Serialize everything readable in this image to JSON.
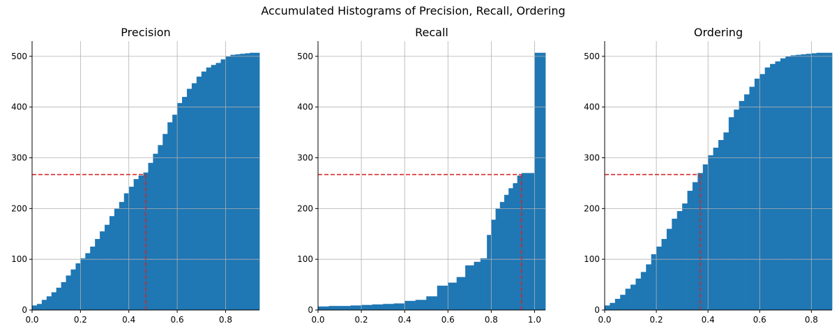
{
  "figure": {
    "suptitle": "Accumulated Histograms of Precision, Recall, Ordering"
  },
  "chart_data": [
    {
      "type": "bar",
      "title": "Precision",
      "xlabel": "",
      "ylabel": "",
      "xlim": [
        0,
        0.94
      ],
      "ylim": [
        0,
        530
      ],
      "xticks": [
        0.0,
        0.2,
        0.4,
        0.6,
        0.8
      ],
      "xtick_labels": [
        "0.0",
        "0.2",
        "0.4",
        "0.6",
        "0.8"
      ],
      "yticks": [
        0,
        100,
        200,
        300,
        400,
        500
      ],
      "ytick_labels": [
        "0",
        "100",
        "200",
        "300",
        "400",
        "500"
      ],
      "grid": true,
      "bar_color": "#1f77b4",
      "ref_color": "#d62728",
      "reference": {
        "x": 0.47,
        "y": 267
      },
      "x": [
        0.0,
        0.02,
        0.04,
        0.06,
        0.08,
        0.1,
        0.12,
        0.14,
        0.16,
        0.18,
        0.2,
        0.22,
        0.24,
        0.26,
        0.28,
        0.3,
        0.32,
        0.34,
        0.36,
        0.38,
        0.4,
        0.42,
        0.44,
        0.46,
        0.48,
        0.5,
        0.52,
        0.54,
        0.56,
        0.58,
        0.6,
        0.62,
        0.64,
        0.66,
        0.68,
        0.7,
        0.72,
        0.74,
        0.76,
        0.78,
        0.8,
        0.82,
        0.84,
        0.86,
        0.88,
        0.9,
        0.92
      ],
      "values": [
        9,
        12,
        20,
        27,
        35,
        44,
        55,
        68,
        80,
        92,
        102,
        112,
        125,
        140,
        155,
        168,
        185,
        200,
        213,
        230,
        243,
        258,
        265,
        271,
        290,
        308,
        325,
        347,
        370,
        385,
        408,
        420,
        436,
        447,
        460,
        470,
        478,
        483,
        487,
        494,
        500,
        503,
        504,
        505,
        506,
        507,
        507
      ]
    },
    {
      "type": "bar",
      "title": "Recall",
      "xlabel": "",
      "ylabel": "",
      "xlim": [
        0,
        1.05
      ],
      "ylim": [
        0,
        530
      ],
      "xticks": [
        0.0,
        0.2,
        0.4,
        0.6,
        0.8,
        1.0
      ],
      "xtick_labels": [
        "0.0",
        "0.2",
        "0.4",
        "0.6",
        "0.8",
        "1.0"
      ],
      "yticks": [
        0,
        100,
        200,
        300,
        400,
        500
      ],
      "ytick_labels": [
        "0",
        "100",
        "200",
        "300",
        "400",
        "500"
      ],
      "grid": true,
      "bar_color": "#1f77b4",
      "ref_color": "#d62728",
      "reference": {
        "x": 0.94,
        "y": 267
      },
      "x": [
        0.0,
        0.05,
        0.1,
        0.15,
        0.2,
        0.25,
        0.3,
        0.35,
        0.4,
        0.45,
        0.5,
        0.55,
        0.6,
        0.64,
        0.68,
        0.72,
        0.75,
        0.78,
        0.8,
        0.82,
        0.84,
        0.86,
        0.88,
        0.9,
        0.92,
        0.94,
        0.96,
        0.98,
        1.0
      ],
      "values": [
        7,
        8,
        8,
        9,
        10,
        11,
        12,
        13,
        18,
        20,
        27,
        48,
        54,
        65,
        88,
        95,
        102,
        148,
        178,
        200,
        213,
        227,
        240,
        250,
        265,
        270,
        270,
        270,
        507
      ]
    },
    {
      "type": "bar",
      "title": "Ordering",
      "xlabel": "",
      "ylabel": "",
      "xlim": [
        0,
        0.88
      ],
      "ylim": [
        0,
        530
      ],
      "xticks": [
        0.0,
        0.2,
        0.4,
        0.6,
        0.8
      ],
      "xtick_labels": [
        "0.0",
        "0.2",
        "0.4",
        "0.6",
        "0.8"
      ],
      "yticks": [
        0,
        100,
        200,
        300,
        400,
        500
      ],
      "ytick_labels": [
        "0",
        "100",
        "200",
        "300",
        "400",
        "500"
      ],
      "grid": true,
      "bar_color": "#1f77b4",
      "ref_color": "#d62728",
      "reference": {
        "x": 0.37,
        "y": 267
      },
      "x": [
        0.0,
        0.02,
        0.04,
        0.06,
        0.08,
        0.1,
        0.12,
        0.14,
        0.16,
        0.18,
        0.2,
        0.22,
        0.24,
        0.26,
        0.28,
        0.3,
        0.32,
        0.34,
        0.36,
        0.38,
        0.4,
        0.42,
        0.44,
        0.46,
        0.48,
        0.5,
        0.52,
        0.54,
        0.56,
        0.58,
        0.6,
        0.62,
        0.64,
        0.66,
        0.68,
        0.7,
        0.72,
        0.74,
        0.76,
        0.78,
        0.8,
        0.82,
        0.84,
        0.86
      ],
      "values": [
        9,
        14,
        22,
        30,
        42,
        50,
        62,
        75,
        90,
        110,
        125,
        140,
        160,
        180,
        195,
        210,
        235,
        252,
        270,
        287,
        305,
        320,
        335,
        350,
        380,
        395,
        412,
        425,
        440,
        456,
        465,
        478,
        485,
        490,
        496,
        500,
        502,
        503,
        504,
        505,
        506,
        507,
        507,
        507
      ]
    }
  ]
}
